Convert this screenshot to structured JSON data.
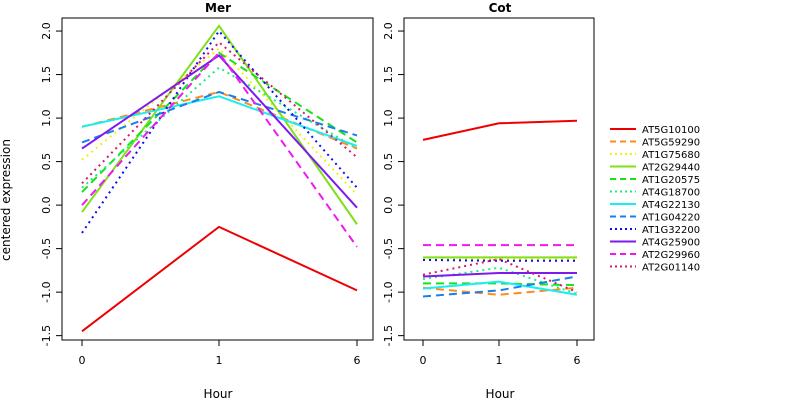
{
  "chart_data": {
    "type": "line",
    "ylabel": "centered expression",
    "x": [
      "0",
      "1",
      "6"
    ],
    "ylim": [
      -1.55,
      2.15
    ],
    "yticks": [
      "2.0",
      "1.5",
      "1.0",
      "0.5",
      "0.0",
      "-0.5",
      "-1.0",
      "-1.5"
    ],
    "ytick_values": [
      2.0,
      1.5,
      1.0,
      0.5,
      0.0,
      -0.5,
      -1.0,
      -1.5
    ],
    "legend_position": "right",
    "series_styles": [
      {
        "name": "AT5G10100",
        "color": "#ee0000",
        "dash": "solid"
      },
      {
        "name": "AT5G59290",
        "color": "#ff8c1a",
        "dash": "dashed"
      },
      {
        "name": "AT1G75680",
        "color": "#f2f20d",
        "dash": "dotted"
      },
      {
        "name": "AT2G29440",
        "color": "#7fe01a",
        "dash": "solid"
      },
      {
        "name": "AT1G20575",
        "color": "#1ae01a",
        "dash": "dashed"
      },
      {
        "name": "AT4G18700",
        "color": "#1aee7f",
        "dash": "dotted"
      },
      {
        "name": "AT4G22130",
        "color": "#1aeef2",
        "dash": "solid"
      },
      {
        "name": "AT1G04220",
        "color": "#1a7fee",
        "dash": "dashed"
      },
      {
        "name": "AT1G32200",
        "color": "#0d0df2",
        "dash": "dotted"
      },
      {
        "name": "AT4G25900",
        "color": "#7f1aee",
        "dash": "solid"
      },
      {
        "name": "AT2G29960",
        "color": "#ee1aee",
        "dash": "dashed"
      },
      {
        "name": "AT2G01140",
        "color": "#d6186f",
        "dash": "dotted"
      }
    ],
    "panels": [
      {
        "title": "Mer",
        "xlabel": "Hour",
        "series": [
          {
            "name": "AT5G10100",
            "values": [
              -1.45,
              -0.25,
              -0.98
            ]
          },
          {
            "name": "AT5G59290",
            "values": [
              0.9,
              1.3,
              0.65
            ]
          },
          {
            "name": "AT1G75680",
            "values": [
              0.52,
              1.8,
              0.12
            ]
          },
          {
            "name": "AT2G29440",
            "values": [
              -0.08,
              2.06,
              -0.22
            ]
          },
          {
            "name": "AT1G20575",
            "values": [
              0.15,
              1.75,
              0.72
            ]
          },
          {
            "name": "AT4G18700",
            "values": [
              0.2,
              1.58,
              0.65
            ]
          },
          {
            "name": "AT4G22130",
            "values": [
              0.9,
              1.25,
              0.68
            ]
          },
          {
            "name": "AT1G04220",
            "values": [
              0.72,
              1.3,
              0.8
            ]
          },
          {
            "name": "AT1G32200",
            "values": [
              -0.32,
              2.0,
              0.2
            ]
          },
          {
            "name": "AT4G25900",
            "values": [
              0.65,
              1.72,
              -0.03
            ]
          },
          {
            "name": "AT2G29960",
            "values": [
              0.0,
              1.75,
              -0.48
            ]
          },
          {
            "name": "AT2G01140",
            "values": [
              0.25,
              1.87,
              0.55
            ]
          }
        ]
      },
      {
        "title": "Cot",
        "xlabel": "Hour",
        "series": [
          {
            "name": "AT5G10100",
            "values": [
              0.75,
              0.94,
              0.97
            ]
          },
          {
            "name": "AT5G59290",
            "values": [
              -0.95,
              -1.03,
              -0.95
            ]
          },
          {
            "name": "AT1G75680",
            "values": [
              -0.62,
              -0.62,
              -0.62
            ]
          },
          {
            "name": "AT2G29440",
            "values": [
              -0.6,
              -0.6,
              -0.6
            ]
          },
          {
            "name": "AT1G20575",
            "values": [
              -0.9,
              -0.9,
              -0.92
            ]
          },
          {
            "name": "AT4G18700",
            "values": [
              -0.85,
              -0.72,
              -1.02
            ]
          },
          {
            "name": "AT4G22130",
            "values": [
              -0.96,
              -0.88,
              -1.03
            ]
          },
          {
            "name": "AT1G04220",
            "values": [
              -1.05,
              -0.98,
              -0.82
            ]
          },
          {
            "name": "AT1G32200",
            "values": [
              -0.63,
              -0.64,
              -0.64
            ]
          },
          {
            "name": "AT4G25900",
            "values": [
              -0.82,
              -0.78,
              -0.78
            ]
          },
          {
            "name": "AT2G29960",
            "values": [
              -0.46,
              -0.46,
              -0.46
            ]
          },
          {
            "name": "AT2G01140",
            "values": [
              -0.8,
              -0.62,
              -1.0
            ]
          }
        ]
      }
    ]
  }
}
